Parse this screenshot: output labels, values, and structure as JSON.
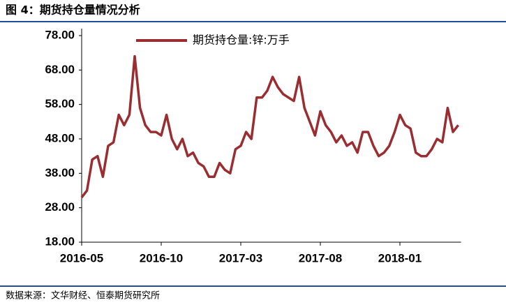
{
  "chart_data": {
    "type": "line",
    "title": "图 4：期货持仓量情况分析",
    "source": "数据来源：文华财经、恒泰期货研究所",
    "categories": [
      "2016-05",
      null,
      null,
      null,
      null,
      null,
      null,
      null,
      null,
      null,
      null,
      null,
      null,
      null,
      null,
      "2016-10",
      null,
      null,
      null,
      null,
      null,
      null,
      null,
      null,
      null,
      null,
      null,
      null,
      null,
      null,
      "2017-03",
      null,
      null,
      null,
      null,
      null,
      null,
      null,
      null,
      null,
      null,
      null,
      null,
      null,
      null,
      "2017-08",
      null,
      null,
      null,
      null,
      null,
      null,
      null,
      null,
      null,
      null,
      null,
      null,
      null,
      null,
      "2018-01",
      null,
      null,
      null,
      null,
      null,
      null,
      null,
      null,
      null,
      null,
      null
    ],
    "series": [
      {
        "name": "期货持仓量:锌:万手",
        "color": "#9b2d30",
        "values": [
          31,
          33,
          42,
          43,
          37,
          46,
          47,
          55,
          52,
          55,
          72,
          57,
          52,
          50,
          50,
          49,
          55,
          48,
          45,
          48,
          43,
          44,
          41,
          40,
          37,
          37,
          41,
          39,
          38,
          45,
          46,
          50,
          48,
          60,
          60,
          62,
          66,
          63,
          61,
          60,
          59,
          66,
          57,
          53,
          49,
          56,
          52,
          50,
          47,
          49,
          46,
          47,
          44,
          50,
          50,
          46,
          43,
          44,
          46,
          50,
          55,
          52,
          51,
          44,
          43,
          43,
          45,
          48,
          47,
          57,
          50,
          52
        ]
      }
    ],
    "ylim": [
      18,
      78
    ],
    "yticks": [
      {
        "value": 18,
        "label": "18.00"
      },
      {
        "value": 28,
        "label": "28.00"
      },
      {
        "value": 38,
        "label": "38.00"
      },
      {
        "value": 48,
        "label": "48.00"
      },
      {
        "value": 58,
        "label": "58.00"
      },
      {
        "value": 68,
        "label": "68.00"
      },
      {
        "value": 78,
        "label": "78.00"
      }
    ],
    "grid": false
  }
}
